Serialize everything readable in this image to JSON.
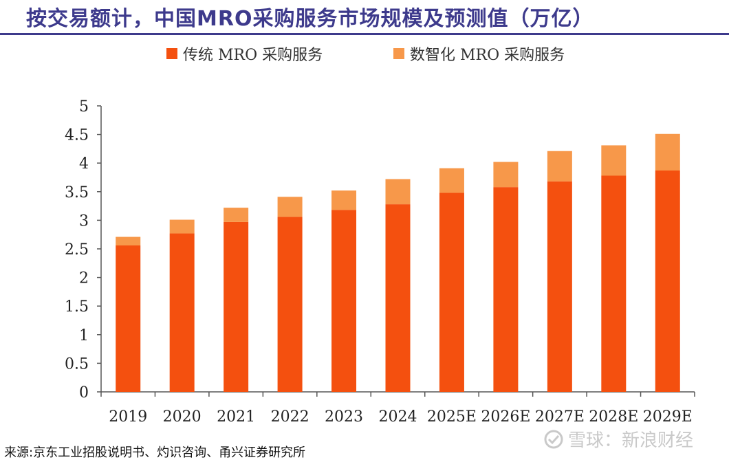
{
  "title": "按交易额计，中国MRO采购服务市场规模及预测值（万亿）",
  "chart_data": {
    "type": "bar",
    "stacked": true,
    "title": "按交易额计，中国MRO采购服务市场规模及预测值（万亿）",
    "categories": [
      "2019",
      "2020",
      "2021",
      "2022",
      "2023",
      "2024",
      "2025E",
      "2026E",
      "2027E",
      "2028E",
      "2029E"
    ],
    "series": [
      {
        "name": "传统 MRO 采购服务",
        "color": "#f4500f",
        "values": [
          2.56,
          2.77,
          2.97,
          3.06,
          3.18,
          3.28,
          3.48,
          3.58,
          3.68,
          3.78,
          3.87
        ]
      },
      {
        "name": "数智化 MRO 采购服务",
        "color": "#f7984a",
        "values": [
          0.15,
          0.24,
          0.25,
          0.35,
          0.34,
          0.44,
          0.43,
          0.44,
          0.53,
          0.53,
          0.64
        ]
      }
    ],
    "yticks": [
      "0",
      "0.5",
      "1",
      "1.5",
      "2",
      "2.5",
      "3",
      "3.5",
      "4",
      "4.5",
      "5"
    ],
    "ylim": [
      0,
      5
    ],
    "xlabel": "",
    "ylabel": "",
    "legend": "top"
  },
  "source": "来源:京东工业招股说明书、灼识咨询、甬兴证券研究所",
  "watermark": "雪球：新浪财经"
}
